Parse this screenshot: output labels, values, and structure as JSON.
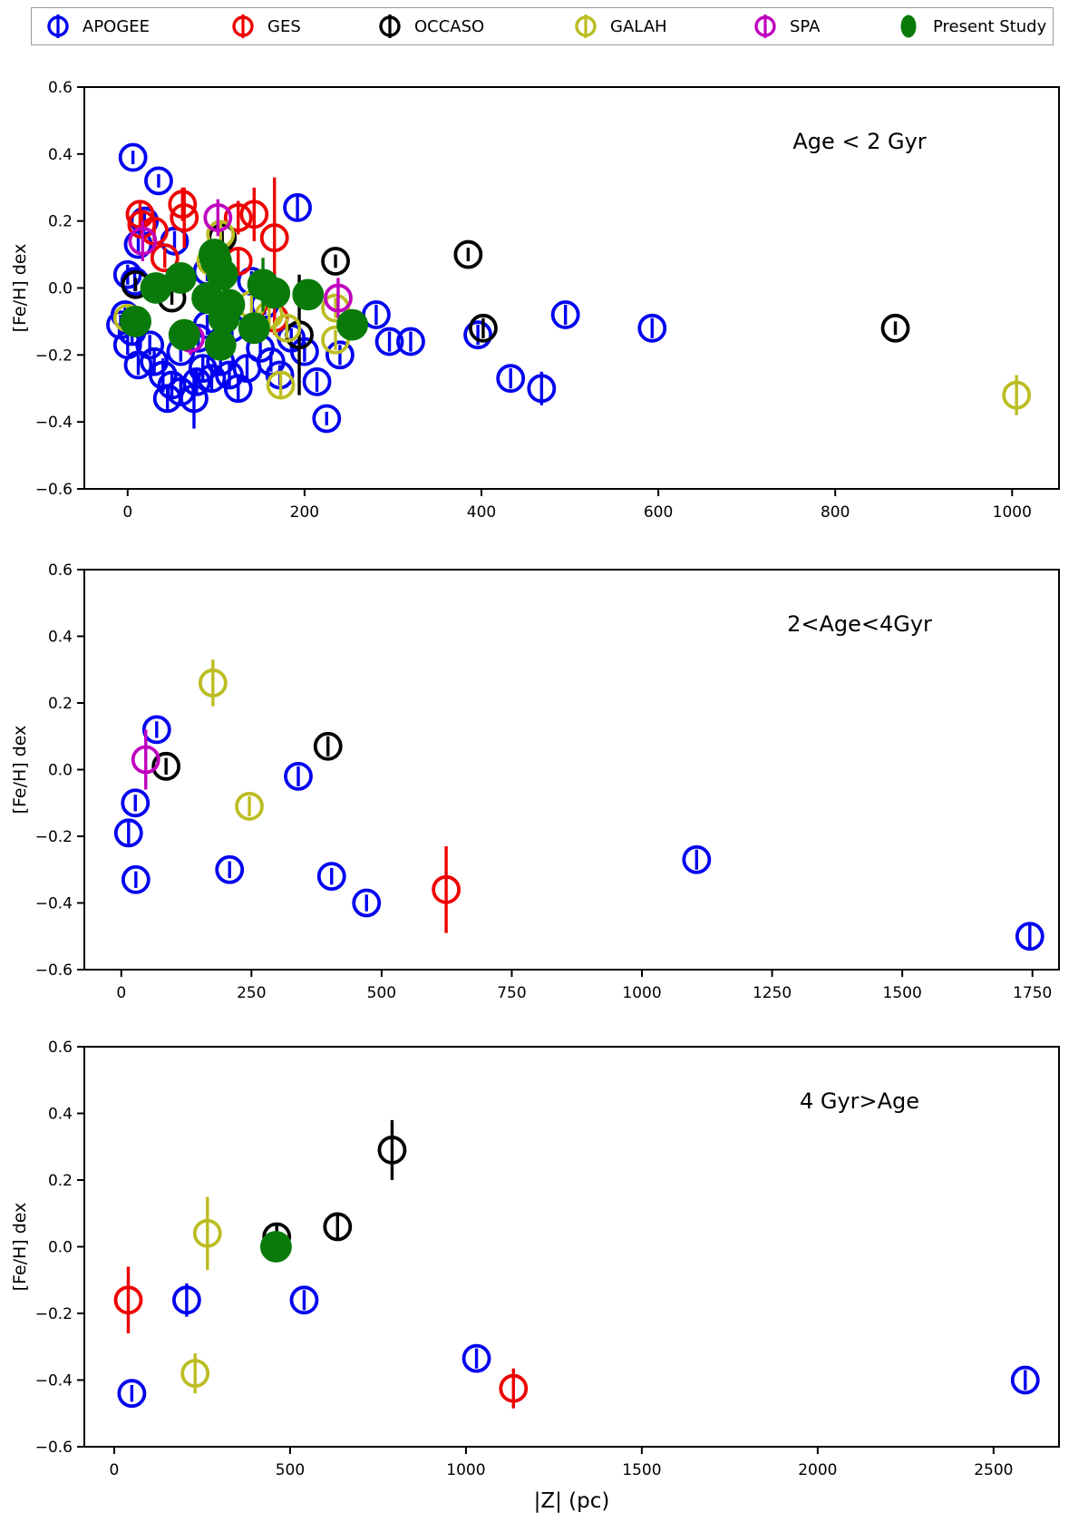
{
  "legend": {
    "items": [
      {
        "label": "APOGEE",
        "color": "#0000f0",
        "filled": false
      },
      {
        "label": "GES",
        "color": "#ee0000",
        "filled": false
      },
      {
        "label": "OCCASO",
        "color": "#000000",
        "filled": false
      },
      {
        "label": "GALAH",
        "color": "#bcbd22",
        "filled": false
      },
      {
        "label": "SPA",
        "color": "#bf00bf",
        "filled": false
      },
      {
        "label": "Present Study",
        "color": "#097a09",
        "filled": true
      }
    ]
  },
  "axes": {
    "y_label": "[Fe/H] dex",
    "x_label": "|Z| (pc)",
    "y_range": [
      -0.6,
      0.6
    ],
    "y_ticks": [
      "0.6",
      "0.4",
      "0.2",
      "0.0",
      "−0.2",
      "−0.4",
      "−0.6"
    ],
    "y_tick_values": [
      0.6,
      0.4,
      0.2,
      0.0,
      -0.2,
      -0.4,
      -0.6
    ],
    "grid": false
  },
  "chart_data": [
    {
      "type": "scatter",
      "title": "Age < 2 Gyr",
      "xlabel": "|Z| (pc)",
      "ylabel": "[Fe/H] dex",
      "x_range": [
        -49,
        1053
      ],
      "x_ticks": [
        0,
        200,
        400,
        600,
        800,
        1000
      ],
      "series": [
        {
          "name": "APOGEE",
          "points": [
            [
              6,
              0.39,
              0.02
            ],
            [
              35,
              0.32,
              0.02
            ],
            [
              19,
              0.2,
              0.03
            ],
            [
              12,
              0.13,
              0.03
            ],
            [
              53,
              0.14,
              0.03
            ],
            [
              90,
              0.05,
              0.03
            ],
            [
              140,
              0.02,
              0.03
            ],
            [
              192,
              0.24,
              0.04
            ],
            [
              0,
              0.04,
              0.03
            ],
            [
              8,
              0.02,
              0.03
            ],
            [
              -3,
              -0.08,
              0.03
            ],
            [
              5,
              -0.13,
              0.04
            ],
            [
              0,
              -0.17,
              0.03
            ],
            [
              12,
              -0.23,
              0.03
            ],
            [
              -8,
              -0.11,
              0.03
            ],
            [
              25,
              -0.17,
              0.03
            ],
            [
              30,
              -0.22,
              0.04
            ],
            [
              40,
              -0.26,
              0.05
            ],
            [
              50,
              -0.29,
              0.04
            ],
            [
              60,
              -0.31,
              0.04
            ],
            [
              75,
              -0.33,
              0.09
            ],
            [
              45,
              -0.33,
              0.04
            ],
            [
              78,
              -0.28,
              0.04
            ],
            [
              85,
              -0.24,
              0.04
            ],
            [
              95,
              -0.27,
              0.04
            ],
            [
              105,
              -0.22,
              0.04
            ],
            [
              115,
              -0.26,
              0.04
            ],
            [
              125,
              -0.3,
              0.04
            ],
            [
              135,
              -0.24,
              0.04
            ],
            [
              60,
              -0.19,
              0.03
            ],
            [
              80,
              -0.15,
              0.03
            ],
            [
              90,
              -0.11,
              0.03
            ],
            [
              105,
              -0.16,
              0.03
            ],
            [
              118,
              -0.12,
              0.03
            ],
            [
              150,
              -0.18,
              0.03
            ],
            [
              162,
              -0.22,
              0.03
            ],
            [
              172,
              -0.26,
              0.03
            ],
            [
              185,
              -0.15,
              0.03
            ],
            [
              200,
              -0.19,
              0.03
            ],
            [
              155,
              -0.05,
              0.03
            ],
            [
              214,
              -0.28,
              0.03
            ],
            [
              225,
              -0.39,
              0.02
            ],
            [
              240,
              -0.2,
              0.03
            ],
            [
              281,
              -0.08,
              0.03
            ],
            [
              296,
              -0.16,
              0.03
            ],
            [
              320,
              -0.16,
              0.03
            ],
            [
              396,
              -0.14,
              0.03
            ],
            [
              433,
              -0.27,
              0.03
            ],
            [
              468,
              -0.3,
              0.05
            ],
            [
              495,
              -0.08,
              0.03
            ],
            [
              593,
              -0.12,
              0.03
            ]
          ]
        },
        {
          "name": "GES",
          "points": [
            [
              14,
              0.22,
              0.04
            ],
            [
              16,
              0.19,
              0.04
            ],
            [
              30,
              0.17,
              0.03
            ],
            [
              62,
              0.25,
              0.05
            ],
            [
              64,
              0.21,
              0.09
            ],
            [
              42,
              0.09,
              0.03
            ],
            [
              125,
              0.21,
              0.05
            ],
            [
              143,
              0.22,
              0.08
            ],
            [
              166,
              0.15,
              0.18
            ],
            [
              125,
              0.08,
              0.04
            ],
            [
              166,
              -0.09,
              0.05
            ]
          ]
        },
        {
          "name": "OCCASO",
          "points": [
            [
              9,
              0.01,
              0.02
            ],
            [
              50,
              -0.03,
              0.02
            ],
            [
              107,
              0.15,
              0.02
            ],
            [
              235,
              0.08,
              0.02
            ],
            [
              385,
              0.1,
              0.02
            ],
            [
              402,
              -0.12,
              0.03
            ],
            [
              868,
              -0.12,
              0.02
            ],
            [
              194,
              -0.14,
              0.18
            ]
          ]
        },
        {
          "name": "GALAH",
          "points": [
            [
              105,
              0.16,
              0.04
            ],
            [
              94,
              0.08,
              0.03
            ],
            [
              0,
              -0.09,
              0.04
            ],
            [
              140,
              -0.05,
              0.03
            ],
            [
              160,
              -0.08,
              0.03
            ],
            [
              180,
              -0.12,
              0.03
            ],
            [
              235,
              -0.06,
              0.03
            ],
            [
              235,
              -0.155,
              0.03
            ],
            [
              173,
              -0.29,
              0.04
            ],
            [
              1005,
              -0.32,
              0.06
            ]
          ]
        },
        {
          "name": "SPA",
          "points": [
            [
              17,
              0.14,
              0.06
            ],
            [
              102,
              0.21,
              0.055
            ],
            [
              238,
              -0.03,
              0.06
            ],
            [
              71,
              -0.15,
              0.05
            ]
          ]
        },
        {
          "name": "Present Study",
          "points": [
            [
              9,
              -0.1,
              0.03
            ],
            [
              32,
              0.0,
              0.03
            ],
            [
              60,
              0.03,
              0.03
            ],
            [
              64,
              -0.14,
              0.03
            ],
            [
              90,
              -0.03,
              0.03
            ],
            [
              98,
              0.1,
              0.04
            ],
            [
              100,
              0.08,
              0.03
            ],
            [
              107,
              0.04,
              0.03
            ],
            [
              109,
              -0.09,
              0.03
            ],
            [
              115,
              -0.05,
              0.03
            ],
            [
              143,
              -0.12,
              0.03
            ],
            [
              153,
              0.01,
              0.08
            ],
            [
              166,
              -0.015,
              0.03
            ],
            [
              105,
              -0.17,
              0.03
            ],
            [
              204,
              -0.02,
              0.03
            ],
            [
              254,
              -0.11,
              0.03
            ]
          ]
        }
      ]
    },
    {
      "type": "scatter",
      "title": "2<Age<4Gyr",
      "xlabel": "|Z| (pc)",
      "ylabel": "[Fe/H] dex",
      "x_range": [
        -71,
        1801
      ],
      "x_ticks": [
        0,
        250,
        500,
        750,
        1000,
        1250,
        1500,
        1750
      ],
      "series": [
        {
          "name": "APOGEE",
          "points": [
            [
              68,
              0.12,
              0.025
            ],
            [
              27,
              -0.1,
              0.025
            ],
            [
              14,
              -0.19,
              0.04
            ],
            [
              28,
              -0.33,
              0.025
            ],
            [
              208,
              -0.3,
              0.025
            ],
            [
              340,
              -0.02,
              0.03
            ],
            [
              404,
              -0.32,
              0.025
            ],
            [
              471,
              -0.4,
              0.025
            ],
            [
              1105,
              -0.27,
              0.03
            ],
            [
              1745,
              -0.5,
              0.035
            ]
          ]
        },
        {
          "name": "GES",
          "points": [
            [
              624,
              -0.36,
              0.13
            ]
          ]
        },
        {
          "name": "OCCASO",
          "points": [
            [
              86,
              0.01,
              0.025
            ],
            [
              397,
              0.07,
              0.03
            ]
          ]
        },
        {
          "name": "GALAH",
          "points": [
            [
              176,
              0.26,
              0.07
            ],
            [
              246,
              -0.11,
              0.03
            ]
          ]
        },
        {
          "name": "SPA",
          "points": [
            [
              47,
              0.03,
              0.09
            ]
          ]
        },
        {
          "name": "Present Study",
          "points": []
        }
      ]
    },
    {
      "type": "scatter",
      "title": "4 Gyr>Age",
      "xlabel": "|Z| (pc)",
      "ylabel": "[Fe/H] dex",
      "x_range": [
        -85,
        2686
      ],
      "x_ticks": [
        0,
        500,
        1000,
        1500,
        2000,
        2500
      ],
      "series": [
        {
          "name": "APOGEE",
          "points": [
            [
              50,
              -0.44,
              0.025
            ],
            [
              206,
              -0.16,
              0.05
            ],
            [
              540,
              -0.16,
              0.03
            ],
            [
              1030,
              -0.335,
              0.03
            ],
            [
              2590,
              -0.4,
              0.03
            ]
          ]
        },
        {
          "name": "GES",
          "points": [
            [
              40,
              -0.16,
              0.1
            ],
            [
              1135,
              -0.425,
              0.06
            ]
          ]
        },
        {
          "name": "OCCASO",
          "points": [
            [
              462,
              0.03,
              0.035
            ],
            [
              635,
              0.06,
              0.04
            ],
            [
              790,
              0.29,
              0.09
            ]
          ]
        },
        {
          "name": "GALAH",
          "points": [
            [
              265,
              0.04,
              0.11
            ],
            [
              230,
              -0.38,
              0.06
            ]
          ]
        },
        {
          "name": "SPA",
          "points": []
        },
        {
          "name": "Present Study",
          "points": [
            [
              460,
              0.0,
              0.025
            ]
          ]
        }
      ]
    }
  ]
}
